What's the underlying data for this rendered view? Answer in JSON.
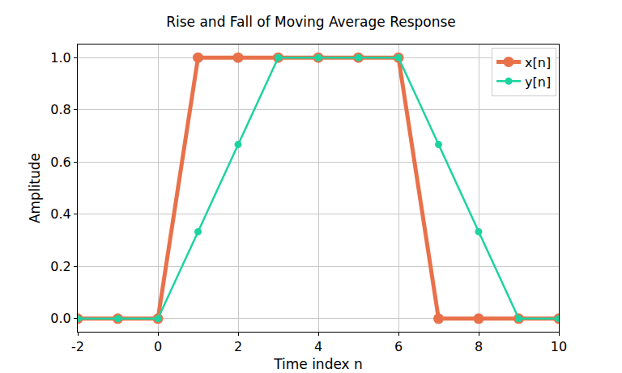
{
  "chart_data": {
    "type": "line",
    "title": "Rise and Fall of Moving Average Response",
    "x_label": "Time index n",
    "y_label": "Amplitude",
    "x": [
      -2,
      -1,
      0,
      1,
      2,
      3,
      4,
      5,
      6,
      7,
      8,
      9,
      10
    ],
    "series": [
      {
        "name": "x[n]",
        "color": "#e8714a",
        "marker": "circle",
        "line_style": "solid",
        "values": [
          0,
          0,
          0,
          1,
          1,
          1,
          1,
          1,
          1,
          0,
          0,
          0,
          0
        ]
      },
      {
        "name": "y[n]",
        "color": "#1dd3a0",
        "marker": "circle",
        "line_style": "solid",
        "values": [
          0,
          0,
          0,
          0.333,
          0.667,
          1,
          1,
          1,
          1,
          0.667,
          0.333,
          0,
          0
        ]
      }
    ],
    "xlim": [
      -2,
      10
    ],
    "xticks": [
      -2,
      0,
      2,
      4,
      6,
      8,
      10
    ],
    "ylim": [
      -0.05,
      1.05
    ],
    "yticks": [
      {
        "value": 0,
        "label": "0.0"
      },
      0.2,
      0.4,
      0.6,
      0.8,
      {
        "value": 1,
        "label": "1.0"
      }
    ],
    "grid": true,
    "legend": "upper right"
  }
}
